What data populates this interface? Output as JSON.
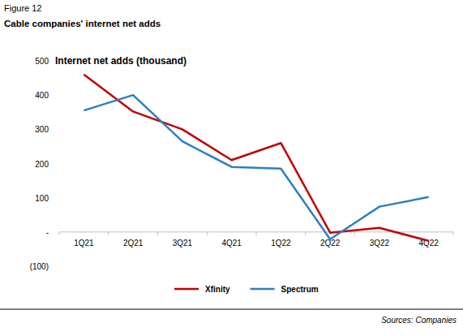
{
  "chart_data": {
    "type": "line",
    "figure_number": "Figure 12",
    "title": "Cable companies' internet net adds",
    "y_label": "Internet net adds (thousand)",
    "source": "Sources: Companies",
    "categories": [
      "1Q21",
      "2Q21",
      "3Q21",
      "4Q21",
      "1Q22",
      "2Q22",
      "3Q22",
      "4Q22"
    ],
    "series": [
      {
        "name": "Xfinity",
        "color": "#c00000",
        "values": [
          460,
          352,
          300,
          210,
          260,
          -2,
          12,
          -26
        ]
      },
      {
        "name": "Spectrum",
        "color": "#2a7fc4",
        "values": [
          355,
          400,
          265,
          190,
          185,
          -21,
          74,
          102
        ]
      }
    ],
    "ylim": [
      -100,
      500
    ],
    "yticks": [
      {
        "value": -100,
        "label": "(100)"
      },
      {
        "value": 0,
        "label": "-"
      },
      100,
      200,
      300,
      400,
      500
    ],
    "grid": false,
    "legend": "bottom"
  }
}
